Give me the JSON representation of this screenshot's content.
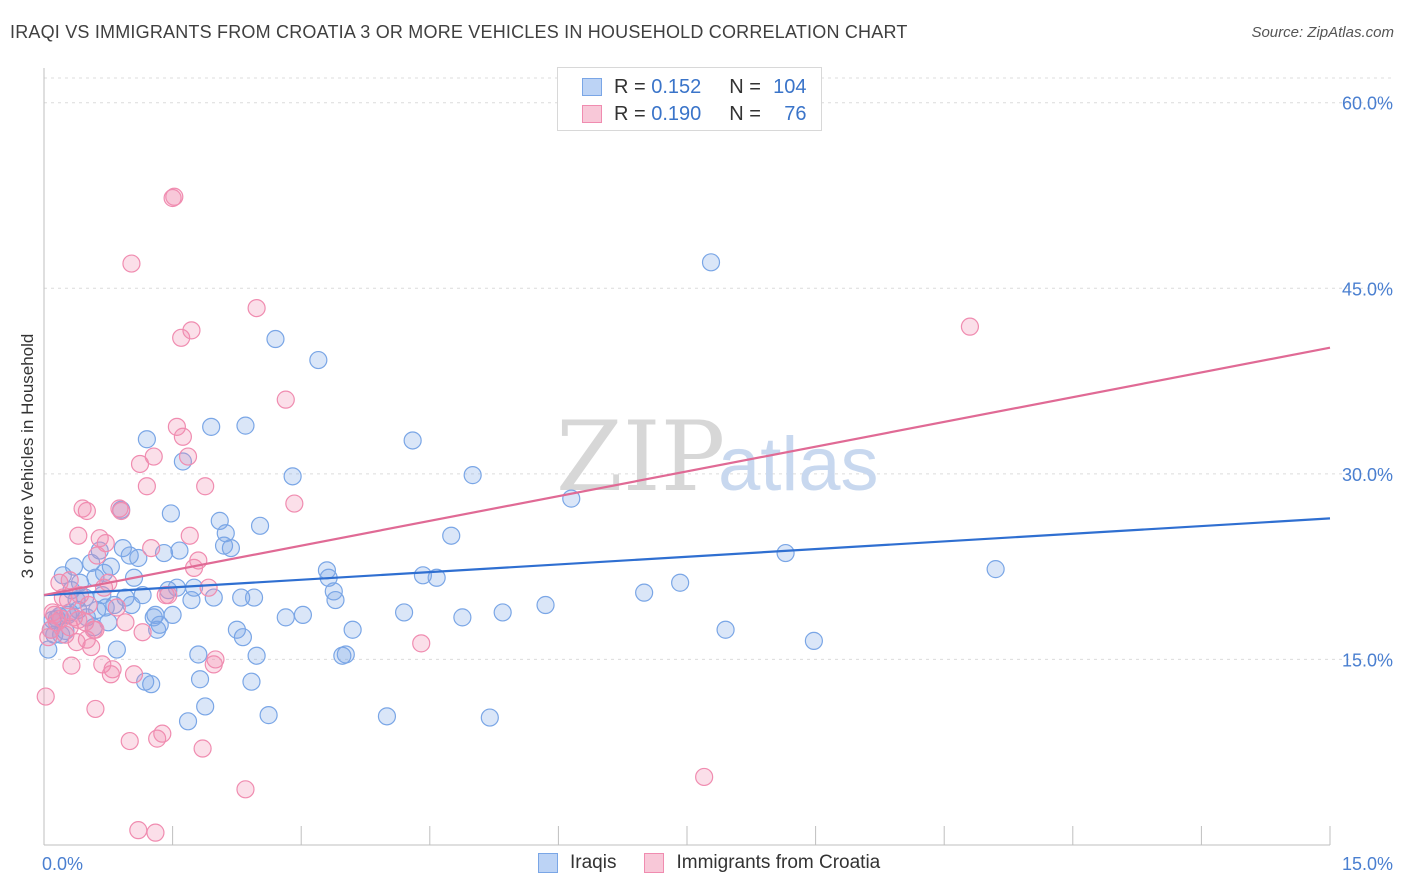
{
  "header": {
    "title": "IRAQI VS IMMIGRANTS FROM CROATIA 3 OR MORE VEHICLES IN HOUSEHOLD CORRELATION CHART",
    "source": "Source: ZipAtlas.com"
  },
  "watermark": {
    "zip": "ZIP",
    "atlas": "atlas"
  },
  "legend_top": [
    {
      "r_label": "R =",
      "r_value": "0.152",
      "n_label": "N =",
      "n_value": "104",
      "color": "#7aa6e6"
    },
    {
      "r_label": "R =",
      "r_value": "0.190",
      "n_label": "N =",
      "n_value": "76",
      "color": "#f08cb0"
    }
  ],
  "chart_data": {
    "type": "scatter",
    "title": "IRAQI VS IMMIGRANTS FROM CROATIA 3 OR MORE VEHICLES IN HOUSEHOLD CORRELATION CHART",
    "xlabel": "",
    "ylabel": "3 or more Vehicles in Household",
    "xlim": [
      0,
      15
    ],
    "ylim": [
      0,
      62
    ],
    "x_tick_labels": [
      "0.0%",
      "15.0%"
    ],
    "y_ticks": [
      15,
      30,
      45,
      60
    ],
    "y_tick_labels": [
      "15.0%",
      "30.0%",
      "45.0%",
      "60.0%"
    ],
    "grid": true,
    "legend_placement": "bottom",
    "series": [
      {
        "name": "Iraqis",
        "color": "#7aa6e6",
        "trend": {
          "x": [
            0,
            15
          ],
          "y": [
            20.2,
            26.4
          ],
          "color": "#2f6fd1"
        },
        "points": [
          [
            0.05,
            15.8
          ],
          [
            0.1,
            18.2
          ],
          [
            0.12,
            17.0
          ],
          [
            0.18,
            18.5
          ],
          [
            0.22,
            21.8
          ],
          [
            0.25,
            17.3
          ],
          [
            0.28,
            18.6
          ],
          [
            0.32,
            20.6
          ],
          [
            0.35,
            22.5
          ],
          [
            0.38,
            19.8
          ],
          [
            0.42,
            21.2
          ],
          [
            0.48,
            20.0
          ],
          [
            0.55,
            22.8
          ],
          [
            0.6,
            21.6
          ],
          [
            0.65,
            23.8
          ],
          [
            0.7,
            22.0
          ],
          [
            0.72,
            19.2
          ],
          [
            0.78,
            22.5
          ],
          [
            0.82,
            19.4
          ],
          [
            0.85,
            15.8
          ],
          [
            0.9,
            27.1
          ],
          [
            0.92,
            24.0
          ],
          [
            0.95,
            20.0
          ],
          [
            1.0,
            23.4
          ],
          [
            1.02,
            19.4
          ],
          [
            1.05,
            21.6
          ],
          [
            1.1,
            23.2
          ],
          [
            1.15,
            20.2
          ],
          [
            1.18,
            13.2
          ],
          [
            1.2,
            32.8
          ],
          [
            1.25,
            13.0
          ],
          [
            1.28,
            18.4
          ],
          [
            1.3,
            18.6
          ],
          [
            1.32,
            17.4
          ],
          [
            1.35,
            17.8
          ],
          [
            1.4,
            23.6
          ],
          [
            1.45,
            20.6
          ],
          [
            1.48,
            26.8
          ],
          [
            1.5,
            18.6
          ],
          [
            1.55,
            20.8
          ],
          [
            1.58,
            23.8
          ],
          [
            1.62,
            31.0
          ],
          [
            1.68,
            10.0
          ],
          [
            1.72,
            19.8
          ],
          [
            1.75,
            20.8
          ],
          [
            1.8,
            15.4
          ],
          [
            1.82,
            13.4
          ],
          [
            1.88,
            11.2
          ],
          [
            1.95,
            33.8
          ],
          [
            1.98,
            20.0
          ],
          [
            2.05,
            26.2
          ],
          [
            2.1,
            24.2
          ],
          [
            2.12,
            25.2
          ],
          [
            2.18,
            24.0
          ],
          [
            2.25,
            17.4
          ],
          [
            2.3,
            20.0
          ],
          [
            2.32,
            16.8
          ],
          [
            2.35,
            33.9
          ],
          [
            2.42,
            13.2
          ],
          [
            2.45,
            20.0
          ],
          [
            2.48,
            15.3
          ],
          [
            2.52,
            25.8
          ],
          [
            2.62,
            10.5
          ],
          [
            2.7,
            40.9
          ],
          [
            2.82,
            18.4
          ],
          [
            2.9,
            29.8
          ],
          [
            3.02,
            18.6
          ],
          [
            3.2,
            39.2
          ],
          [
            3.3,
            22.2
          ],
          [
            3.32,
            21.6
          ],
          [
            3.38,
            20.5
          ],
          [
            3.4,
            19.8
          ],
          [
            3.48,
            15.3
          ],
          [
            3.52,
            15.4
          ],
          [
            3.6,
            17.4
          ],
          [
            4.0,
            10.4
          ],
          [
            4.2,
            18.8
          ],
          [
            4.3,
            32.7
          ],
          [
            4.42,
            21.8
          ],
          [
            4.58,
            21.6
          ],
          [
            4.75,
            25.0
          ],
          [
            4.88,
            18.4
          ],
          [
            5.0,
            29.9
          ],
          [
            5.2,
            10.3
          ],
          [
            5.35,
            18.8
          ],
          [
            5.85,
            19.4
          ],
          [
            6.15,
            28.0
          ],
          [
            7.0,
            20.4
          ],
          [
            7.42,
            21.2
          ],
          [
            7.78,
            47.1
          ],
          [
            7.95,
            17.4
          ],
          [
            8.65,
            23.6
          ],
          [
            8.98,
            16.5
          ],
          [
            11.1,
            22.3
          ],
          [
            0.15,
            18.3
          ],
          [
            0.2,
            17.0
          ],
          [
            0.3,
            18.8
          ],
          [
            0.4,
            19.0
          ],
          [
            0.5,
            18.4
          ],
          [
            0.08,
            17.4
          ],
          [
            0.58,
            17.6
          ],
          [
            0.62,
            19.0
          ],
          [
            0.68,
            20.2
          ],
          [
            0.75,
            18.0
          ]
        ]
      },
      {
        "name": "Immigrants from Croatia",
        "color": "#f08cb0",
        "trend": {
          "x": [
            0,
            15
          ],
          "y": [
            20.2,
            40.2
          ],
          "color": "#e06a95"
        },
        "points": [
          [
            0.02,
            12.0
          ],
          [
            0.05,
            16.8
          ],
          [
            0.08,
            17.4
          ],
          [
            0.1,
            18.8
          ],
          [
            0.15,
            18.0
          ],
          [
            0.18,
            21.2
          ],
          [
            0.22,
            20.0
          ],
          [
            0.25,
            17.0
          ],
          [
            0.28,
            19.8
          ],
          [
            0.3,
            21.4
          ],
          [
            0.32,
            14.5
          ],
          [
            0.35,
            18.4
          ],
          [
            0.38,
            16.4
          ],
          [
            0.4,
            25.0
          ],
          [
            0.42,
            20.2
          ],
          [
            0.45,
            27.2
          ],
          [
            0.48,
            18.0
          ],
          [
            0.5,
            27.0
          ],
          [
            0.52,
            19.4
          ],
          [
            0.55,
            16.0
          ],
          [
            0.58,
            17.4
          ],
          [
            0.6,
            11.0
          ],
          [
            0.62,
            23.4
          ],
          [
            0.65,
            24.8
          ],
          [
            0.68,
            14.6
          ],
          [
            0.7,
            20.8
          ],
          [
            0.72,
            24.4
          ],
          [
            0.75,
            21.2
          ],
          [
            0.78,
            13.8
          ],
          [
            0.8,
            14.2
          ],
          [
            0.85,
            19.2
          ],
          [
            0.88,
            27.2
          ],
          [
            0.9,
            27.0
          ],
          [
            0.95,
            18.0
          ],
          [
            1.0,
            8.4
          ],
          [
            1.02,
            47.0
          ],
          [
            1.05,
            13.8
          ],
          [
            1.1,
            1.2
          ],
          [
            1.12,
            30.8
          ],
          [
            1.15,
            17.2
          ],
          [
            1.2,
            29.0
          ],
          [
            1.25,
            24.0
          ],
          [
            1.28,
            31.4
          ],
          [
            1.3,
            1.0
          ],
          [
            1.32,
            8.6
          ],
          [
            1.38,
            9.0
          ],
          [
            1.42,
            20.2
          ],
          [
            1.45,
            20.2
          ],
          [
            1.5,
            52.3
          ],
          [
            1.52,
            52.4
          ],
          [
            1.55,
            33.8
          ],
          [
            1.6,
            41.0
          ],
          [
            1.62,
            33.0
          ],
          [
            1.68,
            31.4
          ],
          [
            1.7,
            25.0
          ],
          [
            1.72,
            41.6
          ],
          [
            1.75,
            22.4
          ],
          [
            1.8,
            23.0
          ],
          [
            1.85,
            7.8
          ],
          [
            1.88,
            29.0
          ],
          [
            1.92,
            20.8
          ],
          [
            1.98,
            14.6
          ],
          [
            2.0,
            15.0
          ],
          [
            2.35,
            4.5
          ],
          [
            2.48,
            43.4
          ],
          [
            2.82,
            36.0
          ],
          [
            2.92,
            27.6
          ],
          [
            4.4,
            16.3
          ],
          [
            7.7,
            5.5
          ],
          [
            10.8,
            41.9
          ],
          [
            0.12,
            18.6
          ],
          [
            0.2,
            18.3
          ],
          [
            0.3,
            17.6
          ],
          [
            0.4,
            18.2
          ],
          [
            0.5,
            16.6
          ],
          [
            0.6,
            17.4
          ]
        ]
      }
    ]
  }
}
